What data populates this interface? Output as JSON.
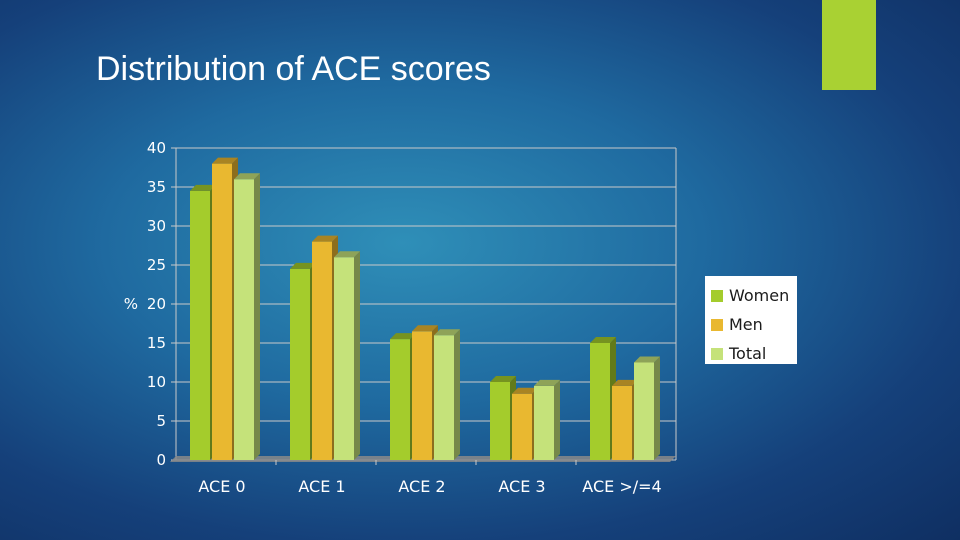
{
  "slide": {
    "title": "Distribution of ACE scores"
  },
  "colors": {
    "accent": "#a9d133"
  },
  "chart_data": {
    "type": "bar",
    "title": "",
    "xlabel": "",
    "ylabel": "%",
    "ylim": [
      0,
      40
    ],
    "yticks": [
      0,
      5,
      10,
      15,
      20,
      25,
      30,
      35,
      40
    ],
    "grid": true,
    "legend_position": "right",
    "categories": [
      "ACE 0",
      "ACE 1",
      "ACE 2",
      "ACE 3",
      "ACE >/=4"
    ],
    "series": [
      {
        "name": "Women",
        "color": "#a4cc2c",
        "values": [
          34.5,
          24.5,
          15.5,
          10,
          15
        ]
      },
      {
        "name": "Men",
        "color": "#e9b830",
        "values": [
          38,
          28,
          16.5,
          8.5,
          9.5
        ]
      },
      {
        "name": "Total",
        "color": "#c5e27a",
        "values": [
          36,
          26,
          16,
          9.5,
          12.5
        ]
      }
    ]
  }
}
